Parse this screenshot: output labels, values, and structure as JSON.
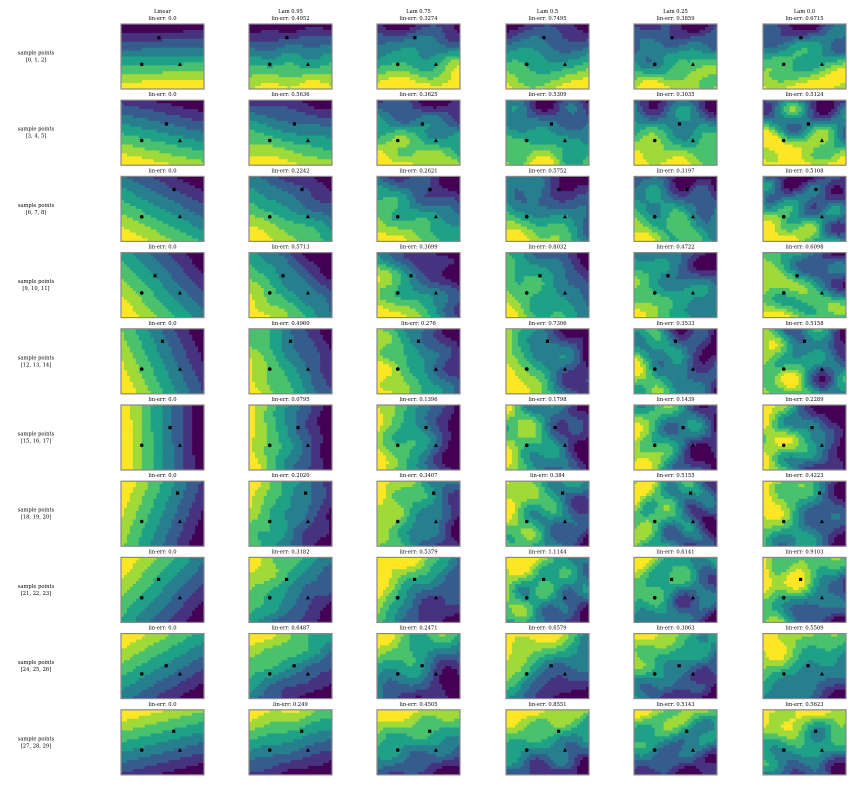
{
  "chart_data": {
    "type": "heatmap",
    "description_grid": "10 rows x 6 columns of small contour plots",
    "column_titles": [
      "Linear",
      "Lam 0.95",
      "Lam 0.75",
      "Lam 0.5",
      "Lam 0.25",
      "Lam 0.0"
    ],
    "row_labels": [
      [
        "sample points",
        "[0, 1, 2]"
      ],
      [
        "sample points",
        "[3, 4, 5]"
      ],
      [
        "sample points",
        "[6, 7, 8]"
      ],
      [
        "sample points",
        "[9, 10, 11]"
      ],
      [
        "sample points",
        "[12, 13, 14]"
      ],
      [
        "sample points",
        "[15, 16, 17]"
      ],
      [
        "sample points",
        "[18, 19, 20]"
      ],
      [
        "sample points",
        "[21, 22, 23]"
      ],
      [
        "sample points",
        "[24, 25, 26]"
      ],
      [
        "sample points",
        "[27, 28, 29]"
      ]
    ],
    "lin_err": [
      [
        "0.0",
        "0.4952",
        "0.3274",
        "0.7495",
        "0.3859",
        "0.6715"
      ],
      [
        "0.0",
        "0.5636",
        "0.3625",
        "0.5309",
        "0.3035",
        "0.5124"
      ],
      [
        "0.0",
        "0.2242",
        "0.2621",
        "0.5752",
        "0.3197",
        "0.5108"
      ],
      [
        "0.0",
        "0.5713",
        "0.3699",
        "0.8032",
        "0.4722",
        "0.6098"
      ],
      [
        "0.0",
        "0.4960",
        "0.276",
        "0.7306",
        "0.3533",
        "0.5158"
      ],
      [
        "0.0",
        "0.0795",
        "0.1396",
        "0.1798",
        "0.1439",
        "0.2289"
      ],
      [
        "0.0",
        "0.2020",
        "0.3407",
        "0.384",
        "0.5155",
        "0.4223"
      ],
      [
        "0.0",
        "0.3182",
        "0.5379",
        "1.1144",
        "0.6141",
        "0.9103"
      ],
      [
        "0.0",
        "0.6487",
        "0.2471",
        "0.6579",
        "0.3063",
        "0.5509"
      ],
      [
        "0.0",
        "0.249",
        "0.4505",
        "0.8551",
        "0.5143",
        "0.5623"
      ]
    ],
    "lin_err_prefix": "lin-err: ",
    "colormap": [
      "#440154",
      "#46327e",
      "#365c8d",
      "#277f8e",
      "#1fa187",
      "#4ac16d",
      "#a0da39",
      "#fde725"
    ],
    "marker_shapes": [
      "circle",
      "triangle",
      "square"
    ],
    "marker_color": "#000000",
    "frame_color": "#888888"
  }
}
